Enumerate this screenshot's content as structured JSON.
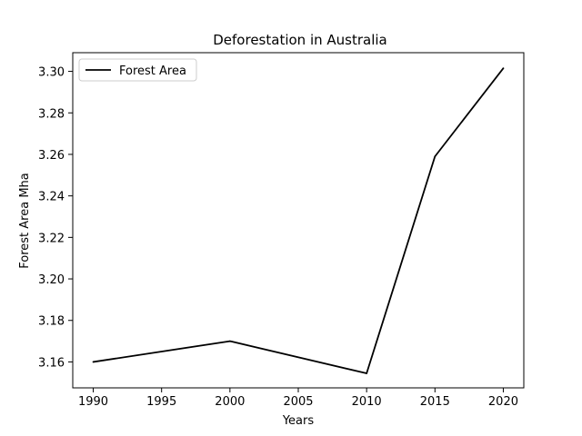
{
  "chart_data": {
    "type": "line",
    "title": "Deforestation in Australia",
    "xlabel": "Years",
    "ylabel": "Forest Area Mha",
    "x": [
      1990,
      2000,
      2010,
      2015,
      2020
    ],
    "series": [
      {
        "name": "Forest Area",
        "values": [
          3.16,
          3.17,
          3.1545,
          3.259,
          3.3015
        ],
        "color": "#000000"
      }
    ],
    "xlim": [
      1988.5,
      2021.5
    ],
    "ylim": [
      3.1475,
      3.309
    ],
    "xticks": [
      1990,
      1995,
      2000,
      2005,
      2010,
      2015,
      2020
    ],
    "yticks": [
      3.16,
      3.18,
      3.2,
      3.22,
      3.24,
      3.26,
      3.28,
      3.3
    ],
    "ytick_labels": [
      "3.16",
      "3.18",
      "3.20",
      "3.22",
      "3.24",
      "3.26",
      "3.28",
      "3.30"
    ],
    "grid": false,
    "legend": "upper-left"
  }
}
